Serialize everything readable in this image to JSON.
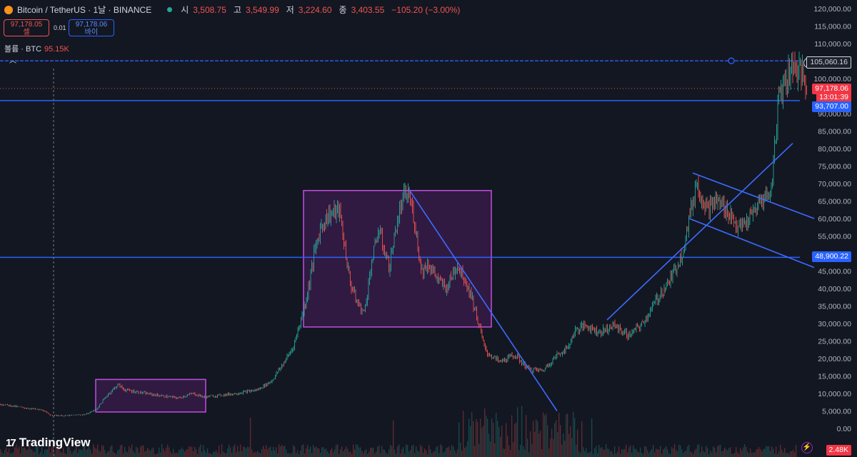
{
  "header": {
    "symbol": "Bitcoin / TetherUS · 1날 · BINANCE",
    "open_label": "시",
    "open": "3,508.75",
    "high_label": "고",
    "high": "3,549.99",
    "low_label": "저",
    "low": "3,224.60",
    "close_label": "종",
    "close": "3,403.55",
    "change": "−105.20 (−3.00%)"
  },
  "trade": {
    "sell_price": "97,178.05",
    "sell_label": "셀",
    "spread": "0.01",
    "buy_price": "97,178.06",
    "buy_label": "바이"
  },
  "volume": {
    "label": "볼륨 · BTC",
    "value": "95.15K"
  },
  "tags": {
    "top_line": "105,060.16",
    "last_price": "97,178.06",
    "countdown": "13:01:39",
    "support_upper": "93,707.00",
    "support_lower": "48,900.22",
    "volume_now": "2.48K"
  },
  "brand": {
    "name": "TradingView",
    "logo_text": "17"
  },
  "colors": {
    "background": "#131722",
    "up": "#26a69a",
    "down": "#ef5350",
    "hline": "#2962ff",
    "trendline": "#3d6bff",
    "rectangle": "#9c27b0"
  },
  "chart_data": {
    "type": "line",
    "title": "Bitcoin / TetherUS",
    "y_axis_ticks": [
      0,
      5000,
      10000,
      15000,
      20000,
      25000,
      30000,
      35000,
      40000,
      45000,
      50000,
      55000,
      60000,
      65000,
      70000,
      75000,
      80000,
      85000,
      90000,
      95000,
      100000,
      105000,
      110000,
      115000,
      120000
    ],
    "y_tick_labels": [
      "0.00",
      "5,000.00",
      "10,000.00",
      "15,000.00",
      "20,000.00",
      "25,000.00",
      "30,000.00",
      "35,000.00",
      "40,000.00",
      "45,000.00",
      "50,000.00",
      "55,000.00",
      "60,000.00",
      "65,000.00",
      "70,000.00",
      "75,000.00",
      "80,000.00",
      "85,000.00",
      "90,000.00",
      "95,000.00",
      "100,000.00",
      "105,000.00",
      "110,000.00",
      "115,000.00",
      "120,000.00"
    ],
    "ylim": [
      -3000,
      123000
    ],
    "series": [
      {
        "x": [
          0,
          30,
          60,
          70,
          90,
          120,
          135,
          150,
          165,
          175,
          190,
          210,
          230,
          250,
          270,
          285,
          300,
          330,
          360,
          380,
          395,
          410,
          420,
          430,
          440,
          450,
          460,
          475,
          490,
          500,
          510,
          520,
          530,
          545,
          555,
          565,
          572,
          580,
          590,
          600,
          615,
          625,
          640,
          650,
          660,
          670,
          680,
          700,
          720,
          740,
          760,
          780,
          795,
          805,
          820,
          840,
          860,
          880,
          900,
          920,
          940,
          955,
          965,
          975,
          990,
          1005,
          1020,
          1035,
          1050,
          1065,
          1080,
          1090,
          1100,
          1110,
          1120,
          1130
        ],
        "y": [
          7000,
          6000,
          5200,
          3800,
          3600,
          4000,
          5500,
          9500,
          12500,
          11000,
          10500,
          9800,
          9200,
          8700,
          10000,
          9000,
          9300,
          10000,
          11000,
          13500,
          18000,
          23000,
          30000,
          38000,
          50000,
          58000,
          61000,
          62500,
          42000,
          36000,
          33000,
          47000,
          57000,
          46000,
          58000,
          66000,
          67000,
          60000,
          45000,
          47000,
          42000,
          40000,
          47000,
          43000,
          38000,
          30000,
          22000,
          19000,
          21000,
          17000,
          16500,
          21000,
          23000,
          28000,
          29500,
          27500,
          29500,
          26500,
          30000,
          37000,
          43000,
          50000,
          60000,
          70000,
          63000,
          65000,
          62000,
          57000,
          60000,
          65000,
          68000,
          95000,
          100000,
          104000,
          102000,
          97178
        ]
      }
    ],
    "horizontal_lines": [
      105060.16,
      93707.0,
      48900.22
    ],
    "current_price": 97178.06,
    "rectangles": [
      {
        "x": [
          134,
          288
        ],
        "y": [
          4700,
          14000
        ]
      },
      {
        "x": [
          425,
          688
        ],
        "y": [
          29000,
          68000
        ]
      }
    ],
    "trendlines": [
      {
        "from": [
          572,
          68500
        ],
        "to": [
          780,
          5000
        ]
      },
      {
        "from": [
          850,
          31000
        ],
        "to": [
          1110,
          81500
        ]
      },
      {
        "from": [
          970,
          73000
        ],
        "to": [
          1140,
          60000
        ]
      },
      {
        "from": [
          965,
          60000
        ],
        "to": [
          1140,
          46000
        ]
      }
    ]
  }
}
